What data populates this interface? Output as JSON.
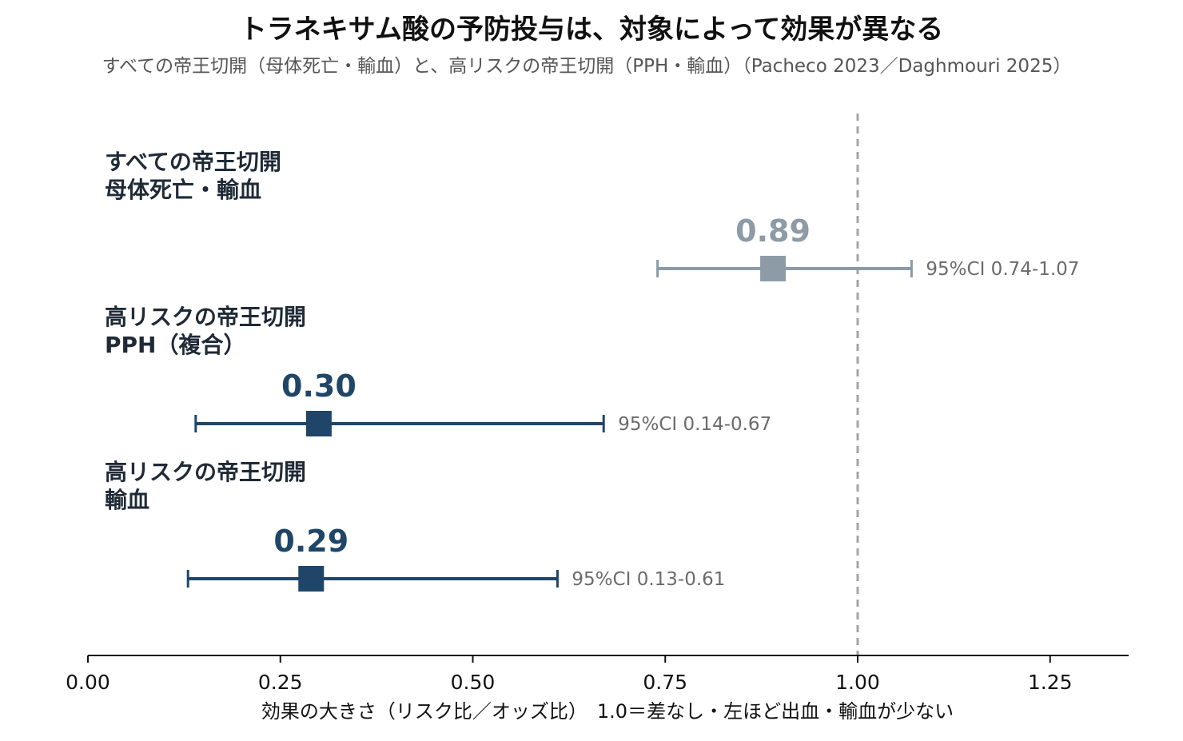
{
  "chart_data": {
    "type": "forest",
    "title": "トラネキサム酸の予防投与は、対象によって効果が異なる",
    "subtitle": "すべての帝王切開（母体死亡・輸血）と、高リスクの帝王切開（PPH・輸血）（Pacheco 2023／Daghmouri 2025）",
    "xlabel": "効果の大きさ（リスク比／オッズ比）　1.0＝差なし・左ほど出血・輸血が少ない",
    "xlim": [
      0,
      1.35
    ],
    "xticks": [
      0.0,
      0.25,
      0.5,
      0.75,
      1.0,
      1.25
    ],
    "xtick_labels": [
      "0.00",
      "0.25",
      "0.50",
      "0.75",
      "1.00",
      "1.25"
    ],
    "reference_line": 1.0,
    "grid": false,
    "rows": [
      {
        "label_lines": [
          "すべての帝王切開",
          "母体死亡・輸血"
        ],
        "estimate": 0.89,
        "estimate_label": "0.89",
        "ci_low": 0.74,
        "ci_high": 1.07,
        "ci_label": "95%CI 0.74-1.07",
        "color": "#8c9ba6"
      },
      {
        "label_lines": [
          "高リスクの帝王切開",
          "PPH（複合）"
        ],
        "estimate": 0.3,
        "estimate_label": "0.30",
        "ci_low": 0.14,
        "ci_high": 0.67,
        "ci_label": "95%CI 0.14-0.67",
        "color": "#1f4668"
      },
      {
        "label_lines": [
          "高リスクの帝王切開",
          "輸血"
        ],
        "estimate": 0.29,
        "estimate_label": "0.29",
        "ci_low": 0.13,
        "ci_high": 0.61,
        "ci_label": "95%CI 0.13-0.61",
        "color": "#1f4668"
      }
    ],
    "colors": {
      "axis": "#111111",
      "reference": "#a0a4ab",
      "ci_text": "#6b6b6b"
    }
  }
}
